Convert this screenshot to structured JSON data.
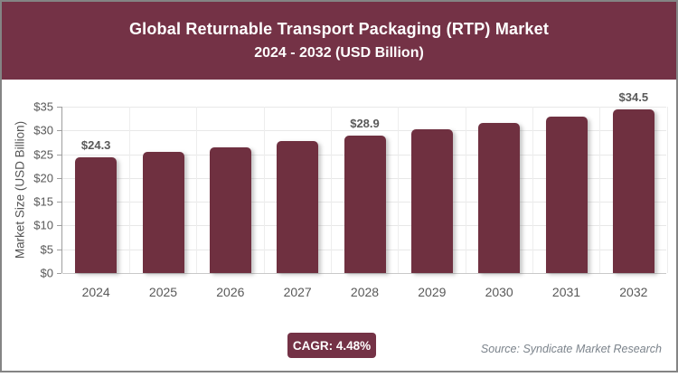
{
  "header": {
    "title": "Global Returnable Transport Packaging (RTP) Market",
    "subtitle": "2024 - 2032 (USD Billion)"
  },
  "chart_data": {
    "type": "bar",
    "categories": [
      "2024",
      "2025",
      "2026",
      "2027",
      "2028",
      "2029",
      "2030",
      "2031",
      "2032"
    ],
    "values": [
      24.3,
      25.4,
      26.5,
      27.7,
      28.9,
      30.2,
      31.6,
      33.0,
      34.5
    ],
    "data_labels": [
      "$24.3",
      "",
      "",
      "",
      "$28.9",
      "",
      "",
      "",
      "$34.5"
    ],
    "title": "Global Returnable Transport Packaging (RTP) Market 2024 - 2032 (USD Billion)",
    "xlabel": "",
    "ylabel": "Market Size (USD Billion)",
    "ylim": [
      0,
      35
    ],
    "ytick_step": 5,
    "ytick_labels": [
      "$0",
      "$5",
      "$10",
      "$15",
      "$20",
      "$25",
      "$30",
      "$35"
    ],
    "grid": true,
    "legend": false
  },
  "footer": {
    "cagr_label": "CAGR: 4.48%",
    "source": "Source: Syndicate Market Research"
  },
  "colors": {
    "header_bg": "#743246",
    "bar": "#6F3040",
    "badge_bg": "#743246",
    "axis_text": "#595959",
    "border": "#848484"
  }
}
